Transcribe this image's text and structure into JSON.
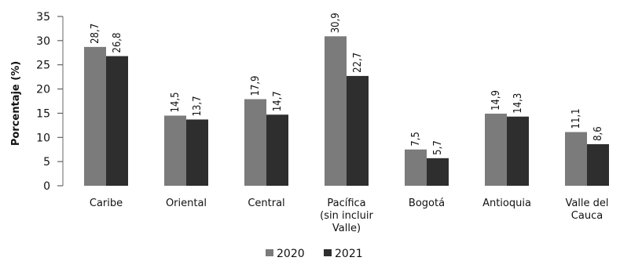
{
  "chart_data": {
    "type": "bar",
    "title": "",
    "xlabel": "",
    "ylabel": "Porcentaje (%)",
    "ylim": [
      0,
      35
    ],
    "yticks": [
      0,
      5,
      10,
      15,
      20,
      25,
      30,
      35
    ],
    "grid": false,
    "legend_position": "bottom",
    "categories": [
      [
        "Caribe"
      ],
      [
        "Oriental"
      ],
      [
        "Central"
      ],
      [
        "Pacífica",
        "(sin incluir",
        "Valle)"
      ],
      [
        "Bogotá"
      ],
      [
        "Antioquia"
      ],
      [
        "Valle del",
        "Cauca"
      ]
    ],
    "series": [
      {
        "name": "2020",
        "color": "#7b7b7b",
        "values": [
          28.7,
          14.5,
          17.9,
          30.9,
          7.5,
          14.9,
          11.1
        ],
        "labels": [
          "28,7",
          "14,5",
          "17,9",
          "30,9",
          "7,5",
          "14,9",
          "11,1"
        ]
      },
      {
        "name": "2021",
        "color": "#2e2e2e",
        "values": [
          26.8,
          13.7,
          14.7,
          22.7,
          5.7,
          14.3,
          8.6
        ],
        "labels": [
          "26,8",
          "13,7",
          "14,7",
          "22,7",
          "5,7",
          "14,3",
          "8,6"
        ]
      }
    ]
  }
}
